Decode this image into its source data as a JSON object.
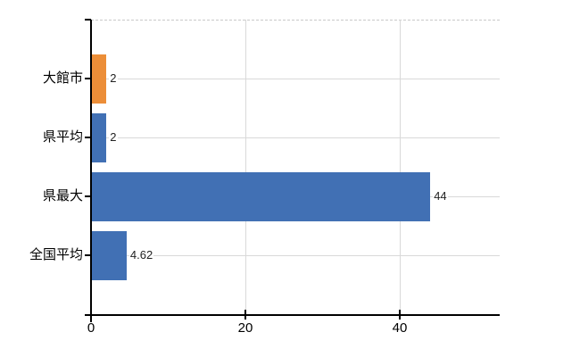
{
  "chart_data": {
    "type": "bar",
    "orientation": "horizontal",
    "title": "",
    "categories": [
      "大館市",
      "県平均",
      "県最大",
      "全国平均"
    ],
    "values": [
      2,
      2,
      44,
      4.62
    ],
    "value_labels": [
      "2",
      "2",
      "44",
      "4.62"
    ],
    "bar_colors": [
      "#ec8e38",
      "#4170b4",
      "#4170b4",
      "#4170b4"
    ],
    "x_ticks": [
      {
        "value": 0,
        "label": "0"
      },
      {
        "value": 20,
        "label": "20"
      },
      {
        "value": 40,
        "label": "40"
      }
    ],
    "xlim": [
      0,
      53
    ],
    "grid": true,
    "legend_position": "none",
    "colors": {
      "highlight": "#ec8e38",
      "primary": "#4170b4",
      "gridline": "#d9d9d9",
      "axis": "#000000",
      "text": "#000000",
      "value_text": "#222222",
      "background": "#ffffff"
    }
  }
}
